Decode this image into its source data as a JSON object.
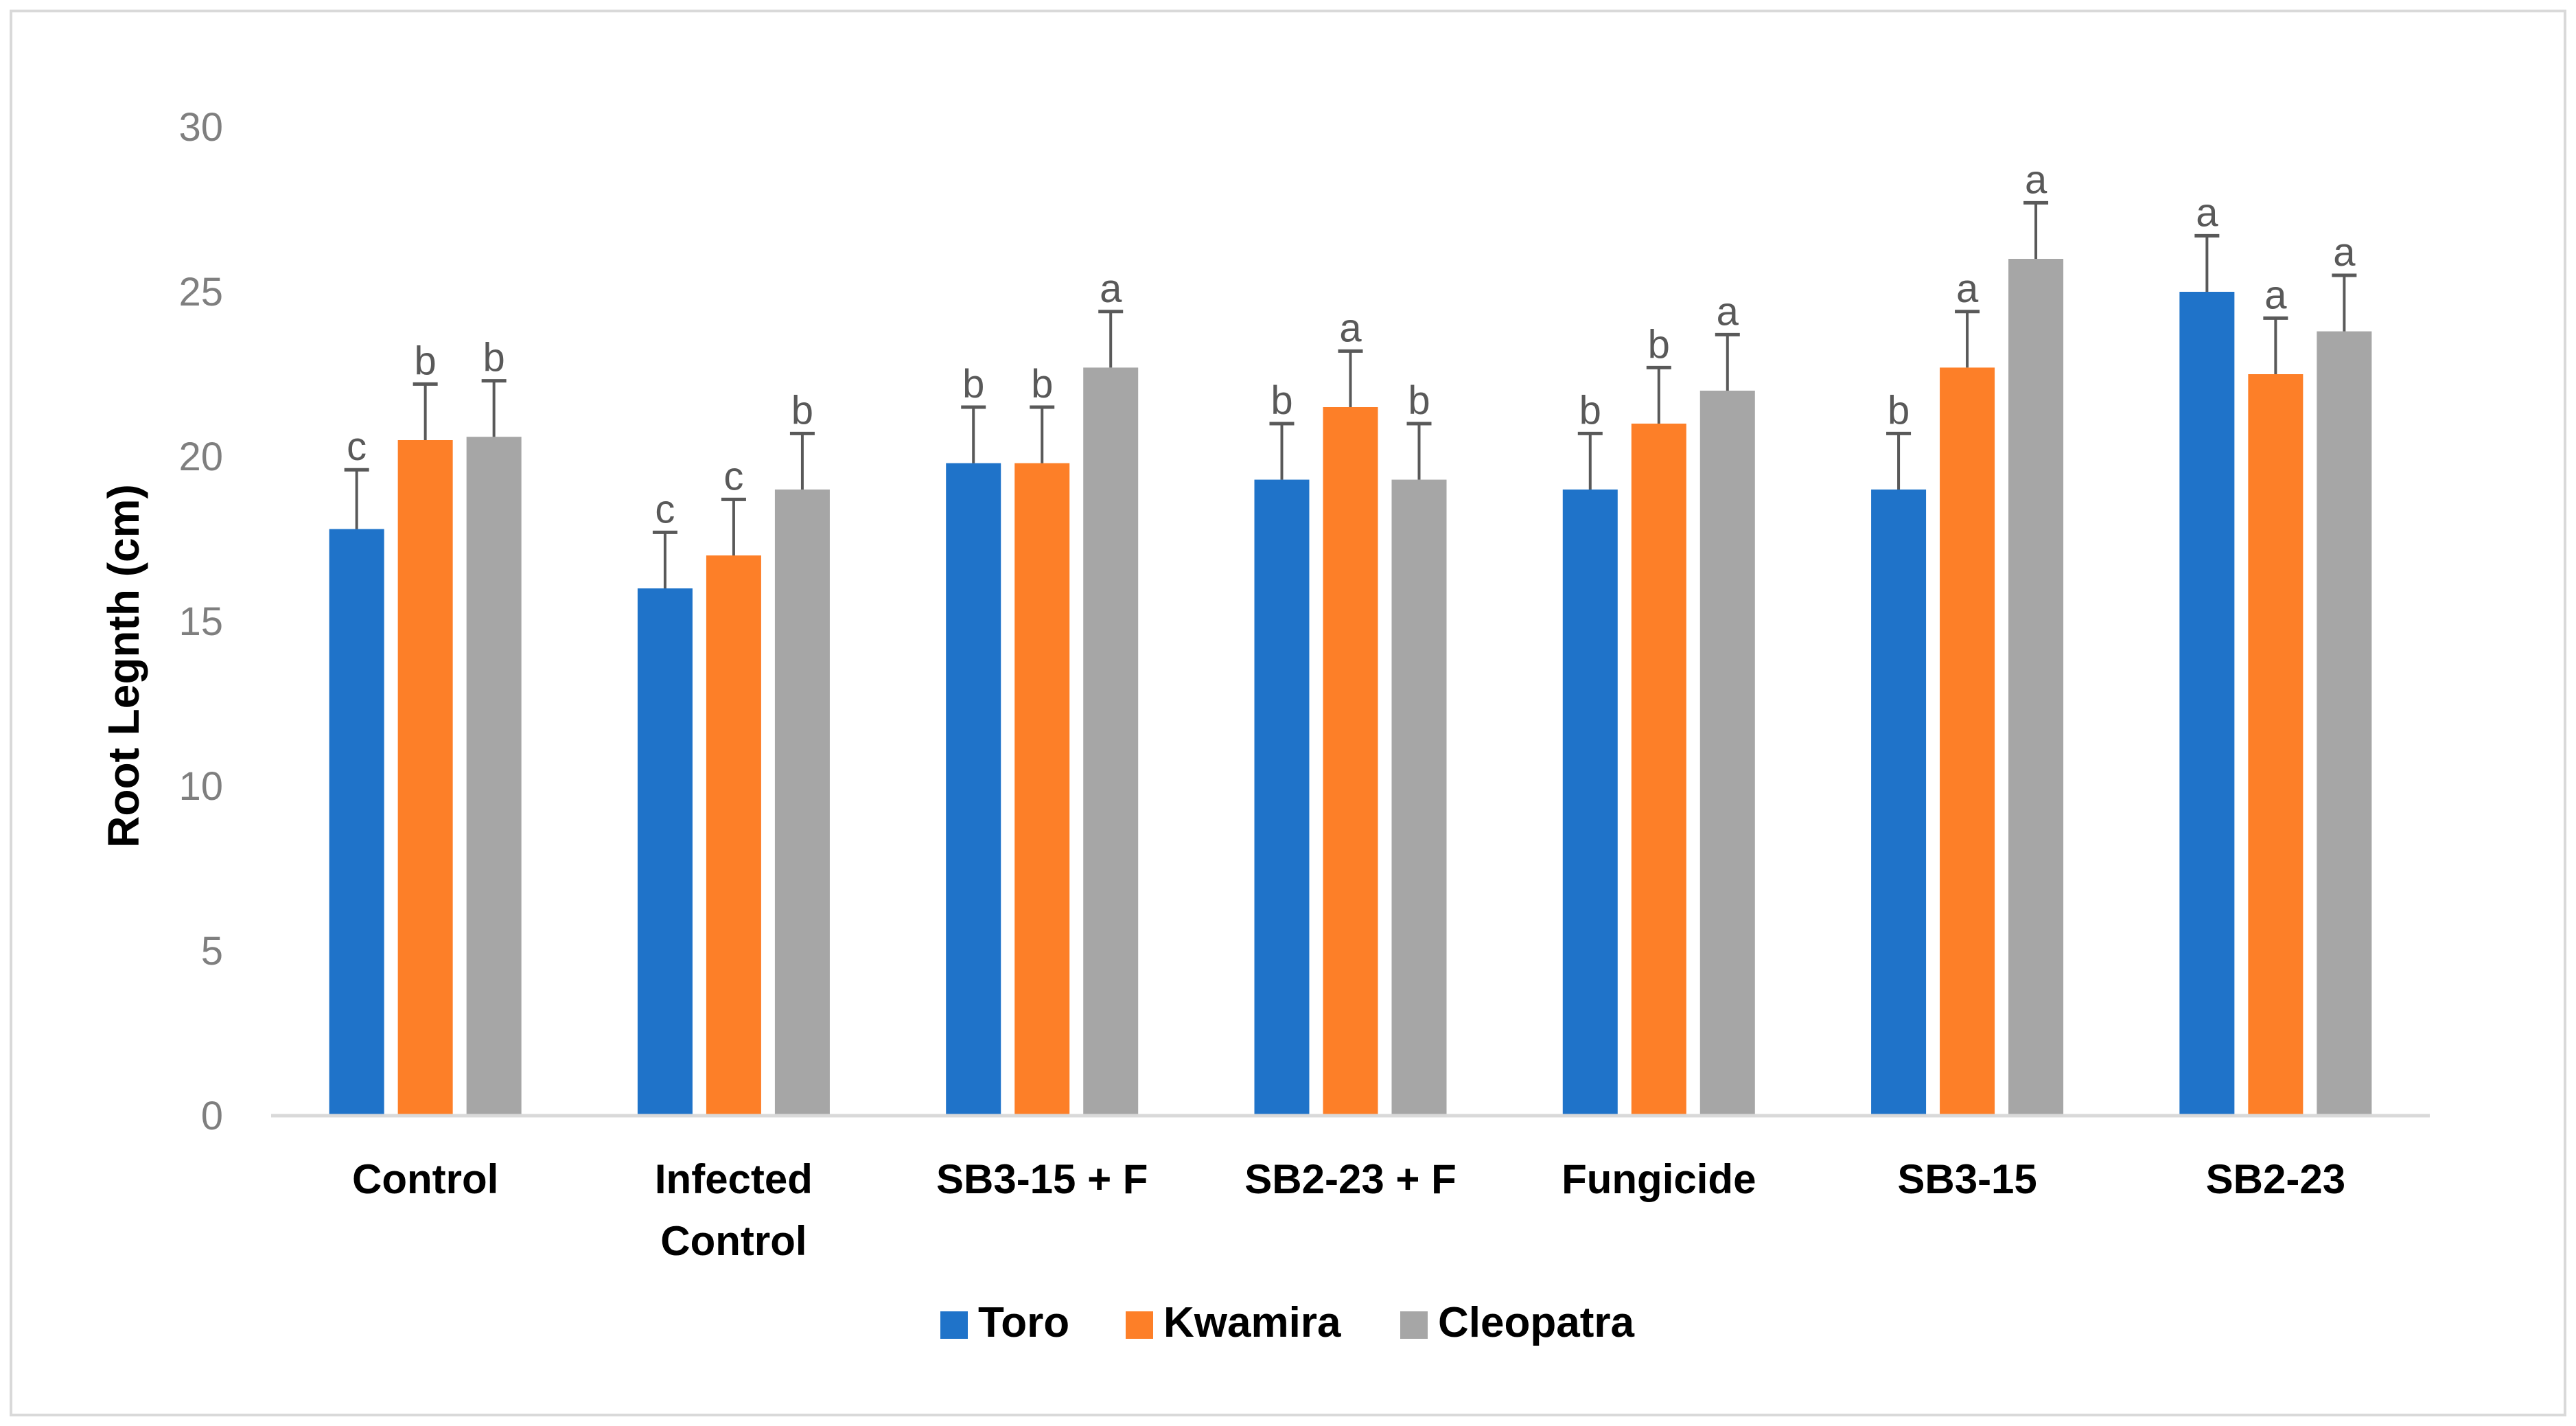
{
  "chart_data": {
    "type": "bar",
    "ylabel": "Root Legnth (cm)",
    "ylim": [
      0,
      30
    ],
    "yticks": [
      "0",
      "5",
      "10",
      "15",
      "20",
      "25",
      "30"
    ],
    "categories": [
      [
        "Control"
      ],
      [
        "Infected",
        "Control"
      ],
      [
        "SB3-15 + F"
      ],
      [
        "SB2-23 + F"
      ],
      [
        "Fungicide"
      ],
      [
        "SB3-15"
      ],
      [
        "SB2-23"
      ]
    ],
    "series": [
      {
        "name": "Toro",
        "color": "#1f73c9",
        "values": [
          17.8,
          16.0,
          19.8,
          19.3,
          19.0,
          19.0,
          25.0
        ],
        "errors": [
          1.8,
          1.7,
          1.7,
          1.7,
          1.7,
          1.7,
          1.7
        ],
        "letters": [
          "c",
          "c",
          "b",
          "b",
          "b",
          "b",
          "a"
        ]
      },
      {
        "name": "Kwamira",
        "color": "#fd7f28",
        "values": [
          20.5,
          17.0,
          19.8,
          21.5,
          21.0,
          22.7,
          22.5
        ],
        "errors": [
          1.7,
          1.7,
          1.7,
          1.7,
          1.7,
          1.7,
          1.7
        ],
        "letters": [
          "b",
          "c",
          "b",
          "a",
          "b",
          "a",
          "a"
        ]
      },
      {
        "name": "Cleopatra",
        "color": "#a6a6a6",
        "values": [
          20.6,
          19.0,
          22.7,
          19.3,
          22.0,
          26.0,
          23.8
        ],
        "errors": [
          1.7,
          1.7,
          1.7,
          1.7,
          1.7,
          1.7,
          1.7
        ],
        "letters": [
          "b",
          "b",
          "a",
          "b",
          "a",
          "a",
          "a"
        ]
      }
    ],
    "legend_position": "bottom",
    "grid": false
  }
}
